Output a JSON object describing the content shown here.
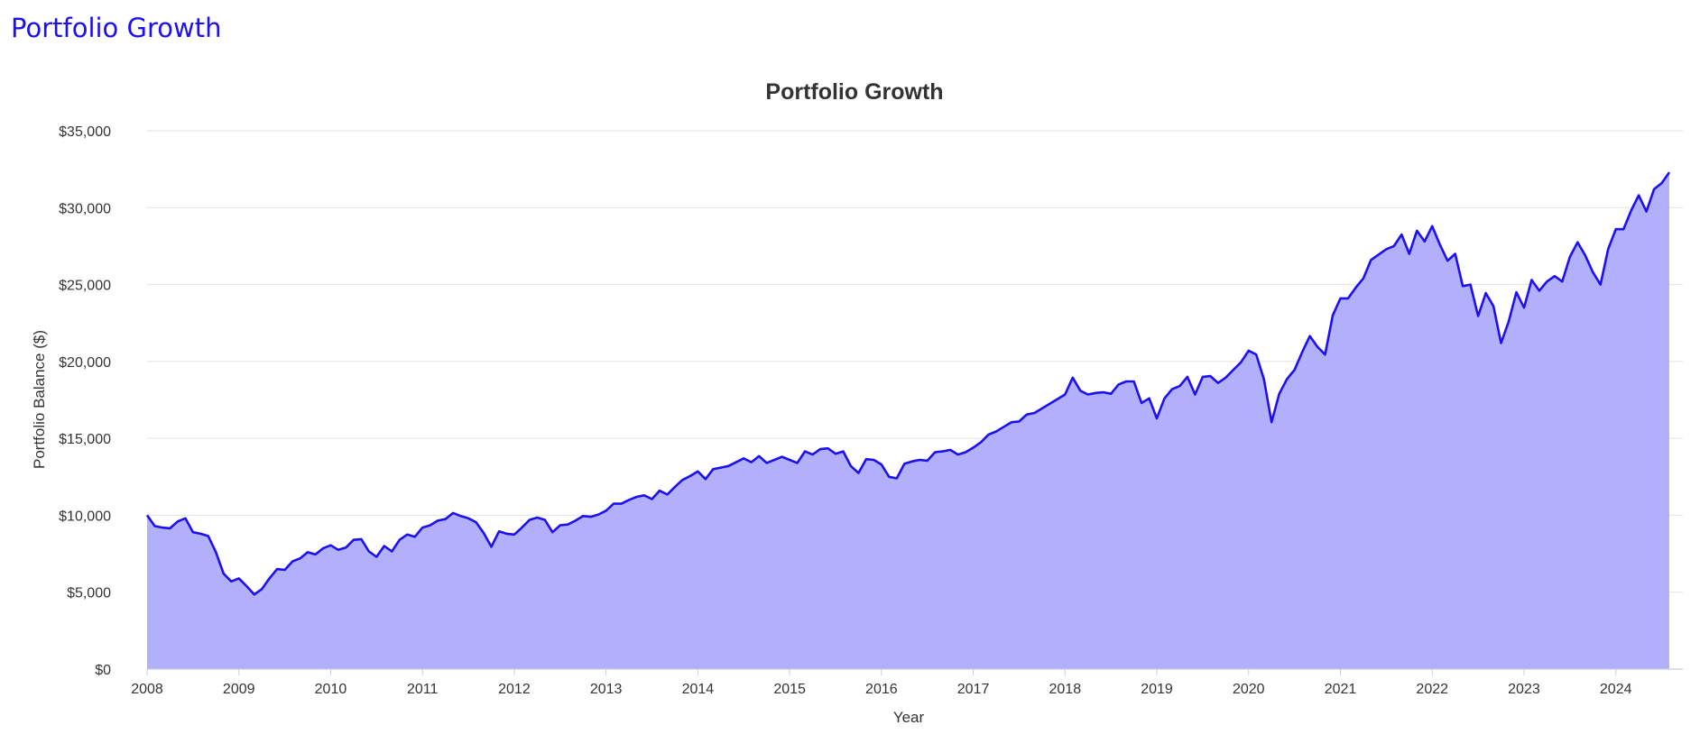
{
  "page": {
    "heading": "Portfolio Growth"
  },
  "colors": {
    "heading": "#1c10f2",
    "line": "#1c10f2",
    "area": "#b2b0fb"
  },
  "chart_data": {
    "type": "area",
    "title": "Portfolio Growth",
    "xlabel": "Year",
    "ylabel": "Portfolio Balance ($)",
    "xlim": [
      2008,
      2024.583
    ],
    "ylim": [
      0,
      35000
    ],
    "x_ticks": [
      "2008",
      "2009",
      "2010",
      "2011",
      "2012",
      "2013",
      "2014",
      "2015",
      "2016",
      "2017",
      "2018",
      "2019",
      "2020",
      "2021",
      "2022",
      "2023",
      "2024"
    ],
    "y_ticks": [
      {
        "value": 0,
        "label": "$0"
      },
      {
        "value": 5000,
        "label": "$5,000"
      },
      {
        "value": 10000,
        "label": "$10,000"
      },
      {
        "value": 15000,
        "label": "$15,000"
      },
      {
        "value": 20000,
        "label": "$20,000"
      },
      {
        "value": 25000,
        "label": "$25,000"
      },
      {
        "value": 30000,
        "label": "$30,000"
      },
      {
        "value": 35000,
        "label": "$35,000"
      }
    ],
    "grid": true,
    "legend": "none",
    "series": [
      {
        "x_start": "2008-01",
        "frequency": "monthly",
        "values": [
          10000,
          9300,
          9200,
          9150,
          9600,
          9800,
          8900,
          8800,
          8650,
          7600,
          6200,
          5700,
          5900,
          5400,
          4850,
          5200,
          5900,
          6500,
          6450,
          7000,
          7200,
          7600,
          7450,
          7850,
          8050,
          7750,
          7900,
          8400,
          8450,
          7650,
          7300,
          8000,
          7650,
          8400,
          8750,
          8600,
          9200,
          9350,
          9650,
          9750,
          10150,
          9950,
          9800,
          9550,
          8850,
          7950,
          8950,
          8800,
          8750,
          9200,
          9700,
          9850,
          9700,
          8900,
          9350,
          9400,
          9650,
          9950,
          9900,
          10050,
          10300,
          10750,
          10750,
          11000,
          11200,
          11300,
          11050,
          11600,
          11350,
          11850,
          12300,
          12550,
          12850,
          12350,
          13000,
          13100,
          13200,
          13450,
          13700,
          13450,
          13850,
          13400,
          13600,
          13800,
          13600,
          13400,
          14150,
          13950,
          14300,
          14350,
          14000,
          14150,
          13200,
          12750,
          13650,
          13600,
          13300,
          12500,
          12400,
          13350,
          13500,
          13600,
          13550,
          14100,
          14150,
          14250,
          13950,
          14100,
          14400,
          14750,
          15250,
          15450,
          15750,
          16050,
          16100,
          16550,
          16650,
          16950,
          17250,
          17550,
          17850,
          18950,
          18100,
          17850,
          17950,
          18000,
          17900,
          18500,
          18700,
          18700,
          17300,
          17600,
          16300,
          17600,
          18200,
          18400,
          19000,
          17850,
          19000,
          19050,
          18600,
          18950,
          19450,
          19950,
          20700,
          20450,
          18850,
          16050,
          17900,
          18850,
          19450,
          20600,
          21650,
          20950,
          20450,
          23000,
          24100,
          24100,
          24800,
          25400,
          26600,
          26950,
          27300,
          27500,
          28250,
          27000,
          28500,
          27800,
          28800,
          27600,
          26550,
          27000,
          24900,
          25000,
          22950,
          24450,
          23600,
          21200,
          22600,
          24500,
          23500,
          25300,
          24600,
          25200,
          25550,
          25200,
          26800,
          27750,
          26900,
          25800,
          25000,
          27300,
          28600,
          28600,
          29800,
          30800,
          29750,
          31200,
          31600,
          32300
        ]
      }
    ]
  }
}
